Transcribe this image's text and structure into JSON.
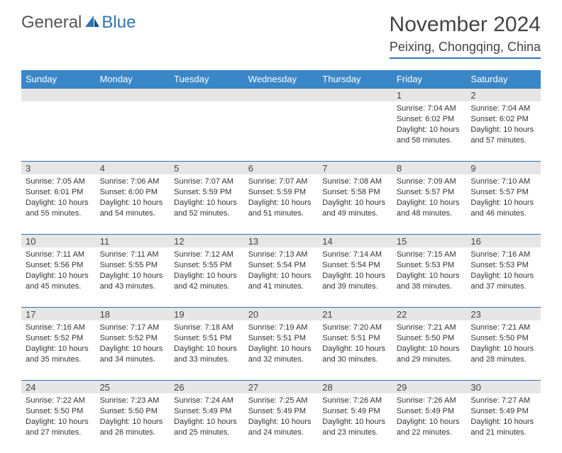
{
  "logo": {
    "general": "General",
    "blue": "Blue"
  },
  "title": "November 2024",
  "location": "Peixing, Chongqing, China",
  "colors": {
    "header_bg": "#3a87c8",
    "accent": "#2e75b6",
    "daynum_bg": "#e6e6e6",
    "text": "#333333"
  },
  "dayNames": [
    "Sunday",
    "Monday",
    "Tuesday",
    "Wednesday",
    "Thursday",
    "Friday",
    "Saturday"
  ],
  "weeks": [
    [
      {
        "n": "",
        "sunrise": "",
        "sunset": "",
        "daylight": ""
      },
      {
        "n": "",
        "sunrise": "",
        "sunset": "",
        "daylight": ""
      },
      {
        "n": "",
        "sunrise": "",
        "sunset": "",
        "daylight": ""
      },
      {
        "n": "",
        "sunrise": "",
        "sunset": "",
        "daylight": ""
      },
      {
        "n": "",
        "sunrise": "",
        "sunset": "",
        "daylight": ""
      },
      {
        "n": "1",
        "sunrise": "Sunrise: 7:04 AM",
        "sunset": "Sunset: 6:02 PM",
        "daylight": "Daylight: 10 hours and 58 minutes."
      },
      {
        "n": "2",
        "sunrise": "Sunrise: 7:04 AM",
        "sunset": "Sunset: 6:02 PM",
        "daylight": "Daylight: 10 hours and 57 minutes."
      }
    ],
    [
      {
        "n": "3",
        "sunrise": "Sunrise: 7:05 AM",
        "sunset": "Sunset: 6:01 PM",
        "daylight": "Daylight: 10 hours and 55 minutes."
      },
      {
        "n": "4",
        "sunrise": "Sunrise: 7:06 AM",
        "sunset": "Sunset: 6:00 PM",
        "daylight": "Daylight: 10 hours and 54 minutes."
      },
      {
        "n": "5",
        "sunrise": "Sunrise: 7:07 AM",
        "sunset": "Sunset: 5:59 PM",
        "daylight": "Daylight: 10 hours and 52 minutes."
      },
      {
        "n": "6",
        "sunrise": "Sunrise: 7:07 AM",
        "sunset": "Sunset: 5:59 PM",
        "daylight": "Daylight: 10 hours and 51 minutes."
      },
      {
        "n": "7",
        "sunrise": "Sunrise: 7:08 AM",
        "sunset": "Sunset: 5:58 PM",
        "daylight": "Daylight: 10 hours and 49 minutes."
      },
      {
        "n": "8",
        "sunrise": "Sunrise: 7:09 AM",
        "sunset": "Sunset: 5:57 PM",
        "daylight": "Daylight: 10 hours and 48 minutes."
      },
      {
        "n": "9",
        "sunrise": "Sunrise: 7:10 AM",
        "sunset": "Sunset: 5:57 PM",
        "daylight": "Daylight: 10 hours and 46 minutes."
      }
    ],
    [
      {
        "n": "10",
        "sunrise": "Sunrise: 7:11 AM",
        "sunset": "Sunset: 5:56 PM",
        "daylight": "Daylight: 10 hours and 45 minutes."
      },
      {
        "n": "11",
        "sunrise": "Sunrise: 7:11 AM",
        "sunset": "Sunset: 5:55 PM",
        "daylight": "Daylight: 10 hours and 43 minutes."
      },
      {
        "n": "12",
        "sunrise": "Sunrise: 7:12 AM",
        "sunset": "Sunset: 5:55 PM",
        "daylight": "Daylight: 10 hours and 42 minutes."
      },
      {
        "n": "13",
        "sunrise": "Sunrise: 7:13 AM",
        "sunset": "Sunset: 5:54 PM",
        "daylight": "Daylight: 10 hours and 41 minutes."
      },
      {
        "n": "14",
        "sunrise": "Sunrise: 7:14 AM",
        "sunset": "Sunset: 5:54 PM",
        "daylight": "Daylight: 10 hours and 39 minutes."
      },
      {
        "n": "15",
        "sunrise": "Sunrise: 7:15 AM",
        "sunset": "Sunset: 5:53 PM",
        "daylight": "Daylight: 10 hours and 38 minutes."
      },
      {
        "n": "16",
        "sunrise": "Sunrise: 7:16 AM",
        "sunset": "Sunset: 5:53 PM",
        "daylight": "Daylight: 10 hours and 37 minutes."
      }
    ],
    [
      {
        "n": "17",
        "sunrise": "Sunrise: 7:16 AM",
        "sunset": "Sunset: 5:52 PM",
        "daylight": "Daylight: 10 hours and 35 minutes."
      },
      {
        "n": "18",
        "sunrise": "Sunrise: 7:17 AM",
        "sunset": "Sunset: 5:52 PM",
        "daylight": "Daylight: 10 hours and 34 minutes."
      },
      {
        "n": "19",
        "sunrise": "Sunrise: 7:18 AM",
        "sunset": "Sunset: 5:51 PM",
        "daylight": "Daylight: 10 hours and 33 minutes."
      },
      {
        "n": "20",
        "sunrise": "Sunrise: 7:19 AM",
        "sunset": "Sunset: 5:51 PM",
        "daylight": "Daylight: 10 hours and 32 minutes."
      },
      {
        "n": "21",
        "sunrise": "Sunrise: 7:20 AM",
        "sunset": "Sunset: 5:51 PM",
        "daylight": "Daylight: 10 hours and 30 minutes."
      },
      {
        "n": "22",
        "sunrise": "Sunrise: 7:21 AM",
        "sunset": "Sunset: 5:50 PM",
        "daylight": "Daylight: 10 hours and 29 minutes."
      },
      {
        "n": "23",
        "sunrise": "Sunrise: 7:21 AM",
        "sunset": "Sunset: 5:50 PM",
        "daylight": "Daylight: 10 hours and 28 minutes."
      }
    ],
    [
      {
        "n": "24",
        "sunrise": "Sunrise: 7:22 AM",
        "sunset": "Sunset: 5:50 PM",
        "daylight": "Daylight: 10 hours and 27 minutes."
      },
      {
        "n": "25",
        "sunrise": "Sunrise: 7:23 AM",
        "sunset": "Sunset: 5:50 PM",
        "daylight": "Daylight: 10 hours and 26 minutes."
      },
      {
        "n": "26",
        "sunrise": "Sunrise: 7:24 AM",
        "sunset": "Sunset: 5:49 PM",
        "daylight": "Daylight: 10 hours and 25 minutes."
      },
      {
        "n": "27",
        "sunrise": "Sunrise: 7:25 AM",
        "sunset": "Sunset: 5:49 PM",
        "daylight": "Daylight: 10 hours and 24 minutes."
      },
      {
        "n": "28",
        "sunrise": "Sunrise: 7:26 AM",
        "sunset": "Sunset: 5:49 PM",
        "daylight": "Daylight: 10 hours and 23 minutes."
      },
      {
        "n": "29",
        "sunrise": "Sunrise: 7:26 AM",
        "sunset": "Sunset: 5:49 PM",
        "daylight": "Daylight: 10 hours and 22 minutes."
      },
      {
        "n": "30",
        "sunrise": "Sunrise: 7:27 AM",
        "sunset": "Sunset: 5:49 PM",
        "daylight": "Daylight: 10 hours and 21 minutes."
      }
    ]
  ]
}
